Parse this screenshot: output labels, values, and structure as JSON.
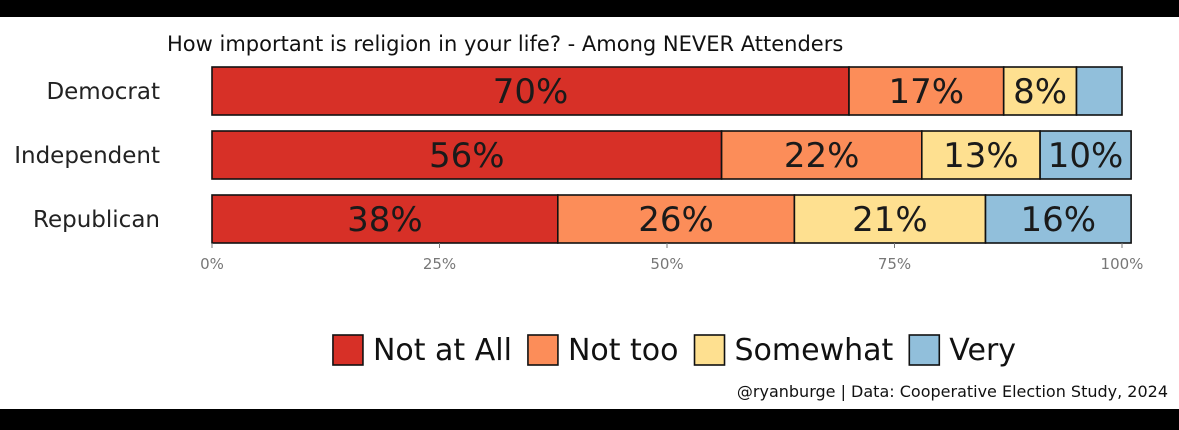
{
  "chart_data": {
    "type": "bar",
    "orientation": "horizontal",
    "stacked": true,
    "title": "How important is religion in your life? - Among NEVER Attenders",
    "categories": [
      "Democrat",
      "Independent",
      "Republican"
    ],
    "series": [
      {
        "name": "Not at All",
        "color": "#d73027",
        "values": [
          70,
          56,
          38
        ],
        "labels": [
          "70%",
          "56%",
          "38%"
        ]
      },
      {
        "name": "Not too",
        "color": "#fc8d59",
        "values": [
          17,
          22,
          26
        ],
        "labels": [
          "17%",
          "22%",
          "26%"
        ]
      },
      {
        "name": "Somewhat",
        "color": "#fee090",
        "values": [
          8,
          13,
          21
        ],
        "labels": [
          "8%",
          "13%",
          "21%"
        ]
      },
      {
        "name": "Very",
        "color": "#91bfdb",
        "values": [
          5,
          10,
          16
        ],
        "labels": [
          "",
          "10%",
          "16%"
        ]
      }
    ],
    "xlim": [
      0,
      100
    ],
    "xticks": [
      "0%",
      "25%",
      "50%",
      "75%",
      "100%"
    ],
    "legend_position": "bottom",
    "caption": "@ryanburge | Data: Cooperative Election Study, 2024"
  }
}
